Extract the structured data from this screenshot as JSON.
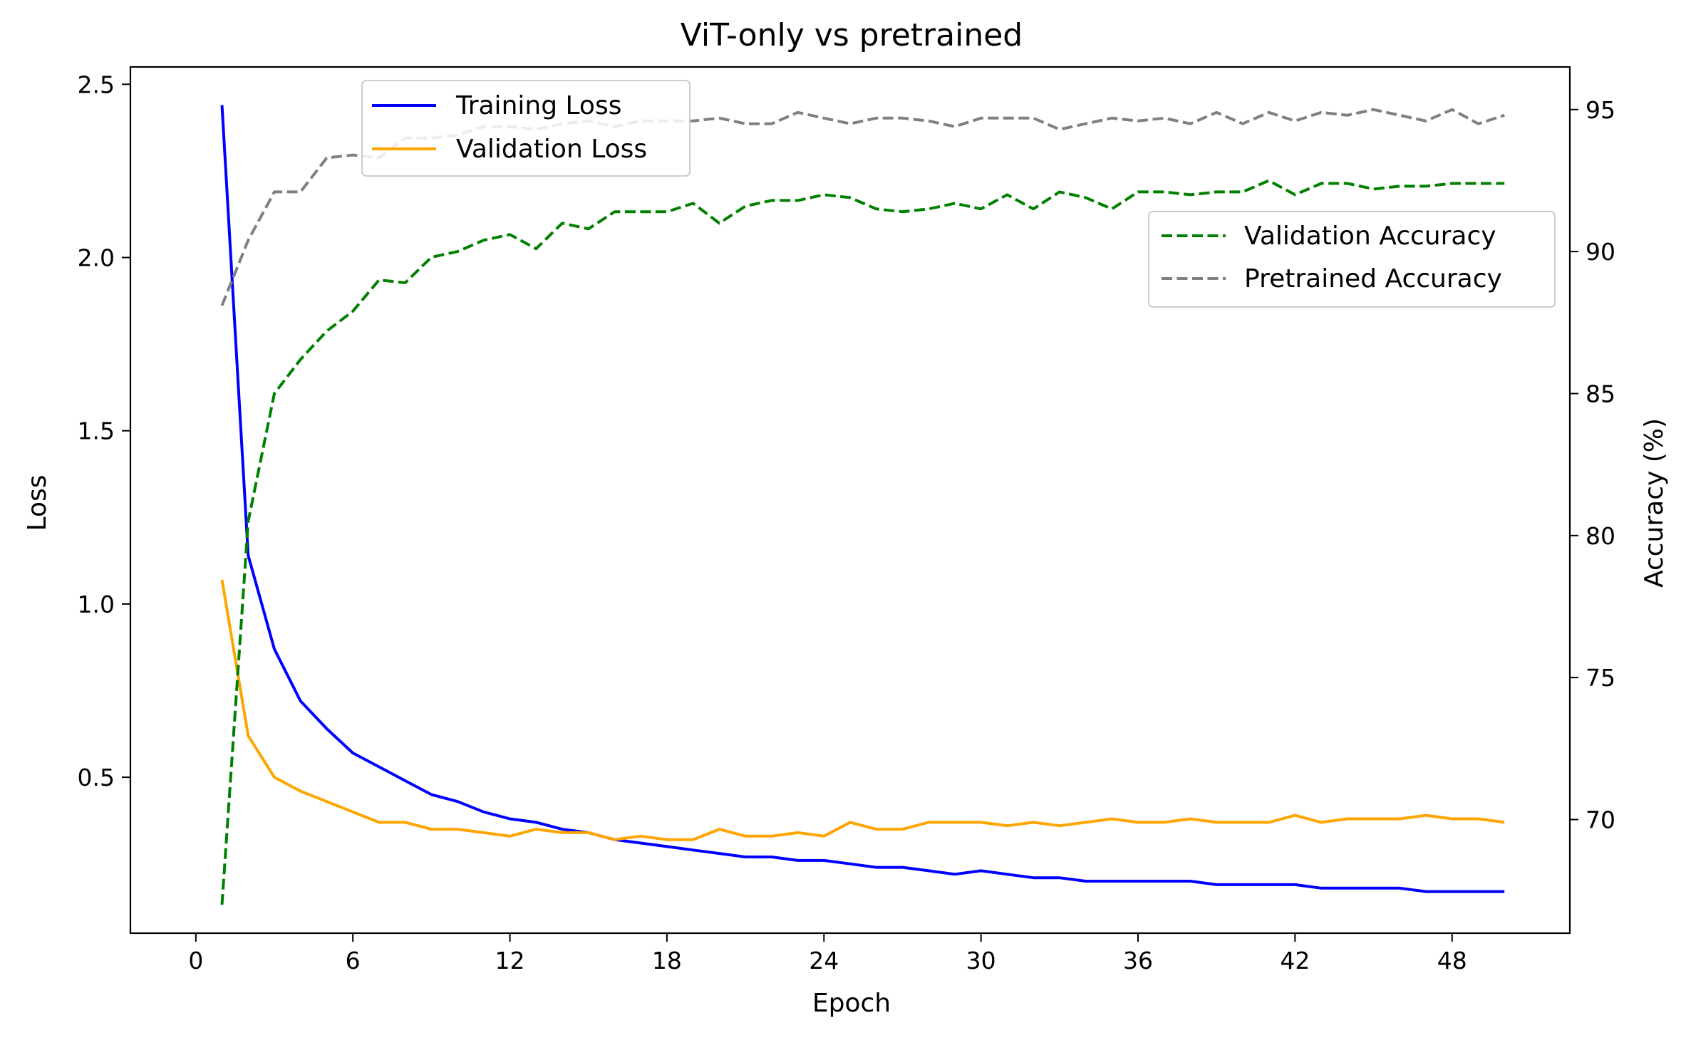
{
  "chart_data": {
    "type": "line",
    "title": "ViT-only vs pretrained",
    "xlabel": "Epoch",
    "ylabel_left": "Loss",
    "ylabel_right": "Accuracy (%)",
    "xlim": [
      -2.5,
      52.5
    ],
    "ylim_left": [
      0.05,
      2.55
    ],
    "ylim_right": [
      66.0,
      96.5
    ],
    "xticks": [
      0,
      6,
      12,
      18,
      24,
      30,
      36,
      42,
      48
    ],
    "yticks_left": [
      0.5,
      1.0,
      1.5,
      2.0,
      2.5
    ],
    "yticks_left_labels": [
      "0.5",
      "1.0",
      "1.5",
      "2.0",
      "2.5"
    ],
    "yticks_right": [
      70,
      75,
      80,
      85,
      90,
      95
    ],
    "grid": false,
    "legend_left_position": "upper-center-left",
    "legend_right_position": "upper-right",
    "x": [
      1,
      2,
      3,
      4,
      5,
      6,
      7,
      8,
      9,
      10,
      11,
      12,
      13,
      14,
      15,
      16,
      17,
      18,
      19,
      20,
      21,
      22,
      23,
      24,
      25,
      26,
      27,
      28,
      29,
      30,
      31,
      32,
      33,
      34,
      35,
      36,
      37,
      38,
      39,
      40,
      41,
      42,
      43,
      44,
      45,
      46,
      47,
      48,
      49,
      50
    ],
    "series": [
      {
        "name": "Training Loss",
        "axis": "left",
        "color": "#0000ff",
        "style": "solid",
        "values": [
          2.44,
          1.14,
          0.87,
          0.72,
          0.64,
          0.57,
          0.53,
          0.49,
          0.45,
          0.43,
          0.4,
          0.38,
          0.37,
          0.35,
          0.34,
          0.32,
          0.31,
          0.3,
          0.29,
          0.28,
          0.27,
          0.27,
          0.26,
          0.26,
          0.25,
          0.24,
          0.24,
          0.23,
          0.22,
          0.23,
          0.22,
          0.21,
          0.21,
          0.2,
          0.2,
          0.2,
          0.2,
          0.2,
          0.19,
          0.19,
          0.19,
          0.19,
          0.18,
          0.18,
          0.18,
          0.18,
          0.17,
          0.17,
          0.17,
          0.17
        ]
      },
      {
        "name": "Validation Loss",
        "axis": "left",
        "color": "#ffa500",
        "style": "solid",
        "values": [
          1.07,
          0.62,
          0.5,
          0.46,
          0.43,
          0.4,
          0.37,
          0.37,
          0.35,
          0.35,
          0.34,
          0.33,
          0.35,
          0.34,
          0.34,
          0.32,
          0.33,
          0.32,
          0.32,
          0.35,
          0.33,
          0.33,
          0.34,
          0.33,
          0.37,
          0.35,
          0.35,
          0.37,
          0.37,
          0.37,
          0.36,
          0.37,
          0.36,
          0.37,
          0.38,
          0.37,
          0.37,
          0.38,
          0.37,
          0.37,
          0.37,
          0.39,
          0.37,
          0.38,
          0.38,
          0.38,
          0.39,
          0.38,
          0.38,
          0.37
        ]
      },
      {
        "name": "Validation Accuracy",
        "axis": "right",
        "color": "#008000",
        "style": "dashed",
        "values": [
          67.0,
          80.5,
          85.0,
          86.2,
          87.2,
          87.9,
          89.0,
          88.9,
          89.8,
          90.0,
          90.4,
          90.6,
          90.1,
          91.0,
          90.8,
          91.4,
          91.4,
          91.4,
          91.7,
          91.0,
          91.6,
          91.8,
          91.8,
          92.0,
          91.9,
          91.5,
          91.4,
          91.5,
          91.7,
          91.5,
          92.0,
          91.5,
          92.1,
          91.9,
          91.5,
          92.1,
          92.1,
          92.0,
          92.1,
          92.1,
          92.5,
          92.0,
          92.4,
          92.4,
          92.2,
          92.3,
          92.3,
          92.4,
          92.4,
          92.4
        ]
      },
      {
        "name": "Pretrained Accuracy",
        "axis": "right",
        "color": "#808080",
        "style": "dashed",
        "values": [
          88.1,
          90.4,
          92.1,
          92.1,
          93.3,
          93.4,
          93.3,
          94.0,
          94.0,
          94.1,
          94.4,
          94.4,
          94.3,
          94.5,
          94.6,
          94.4,
          94.6,
          94.6,
          94.6,
          94.7,
          94.5,
          94.5,
          94.9,
          94.7,
          94.5,
          94.7,
          94.7,
          94.6,
          94.4,
          94.7,
          94.7,
          94.7,
          94.3,
          94.5,
          94.7,
          94.6,
          94.7,
          94.5,
          94.9,
          94.5,
          94.9,
          94.6,
          94.9,
          94.8,
          95.0,
          94.8,
          94.6,
          95.0,
          94.5,
          94.8
        ]
      }
    ]
  }
}
